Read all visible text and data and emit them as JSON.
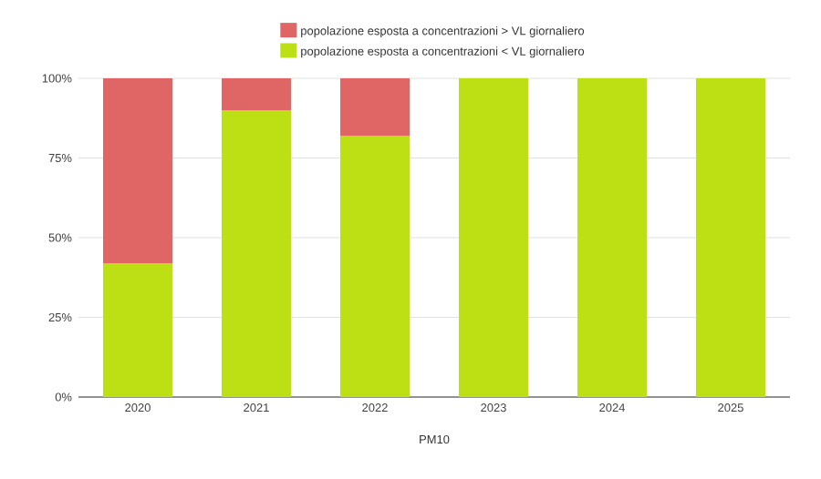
{
  "chart_data": {
    "type": "bar",
    "stacked": true,
    "xlabel": "PM10",
    "categories": [
      "2020",
      "2021",
      "2022",
      "2023",
      "2024",
      "2025"
    ],
    "series": [
      {
        "name": "popolazione esposta a concentrazioni < VL giornaliero",
        "color": "#bce014",
        "values": [
          42,
          90,
          82,
          100,
          100,
          100
        ]
      },
      {
        "name": "popolazione esposta a concentrazioni > VL giornaliero",
        "color": "#e06666",
        "values": [
          58,
          10,
          18,
          0,
          0,
          0
        ]
      }
    ],
    "ylim": [
      0,
      100
    ],
    "yticks": [
      {
        "value": 0,
        "label": "0%"
      },
      {
        "value": 25,
        "label": "25%"
      },
      {
        "value": 50,
        "label": "50%"
      },
      {
        "value": 75,
        "label": "75%"
      },
      {
        "value": 100,
        "label": "100%"
      }
    ],
    "grid": "y",
    "legend": "top"
  }
}
